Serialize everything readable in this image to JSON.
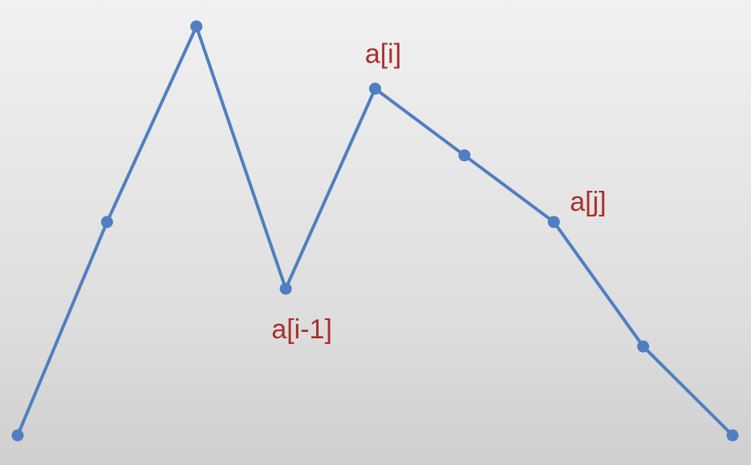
{
  "chart_data": {
    "type": "line",
    "title": "",
    "xlabel": "",
    "ylabel": "",
    "x": [
      0,
      1,
      2,
      3,
      4,
      5,
      6,
      7,
      8
    ],
    "series": [
      {
        "values": [
          0,
          4.8,
          9.2,
          3.3,
          7.8,
          6.3,
          4.8,
          2,
          0
        ]
      }
    ],
    "xlim": [
      0,
      8
    ],
    "ylim": [
      0,
      9.2
    ],
    "grid": false,
    "legend": "none",
    "annotations": [
      {
        "text": "a[i-1]",
        "x": 3
      },
      {
        "text": "a[i]",
        "x": 4
      },
      {
        "text": "a[j]",
        "x": 6
      }
    ],
    "colors": {
      "line": "#4f7fc0",
      "annotation": "#a8302a"
    }
  }
}
